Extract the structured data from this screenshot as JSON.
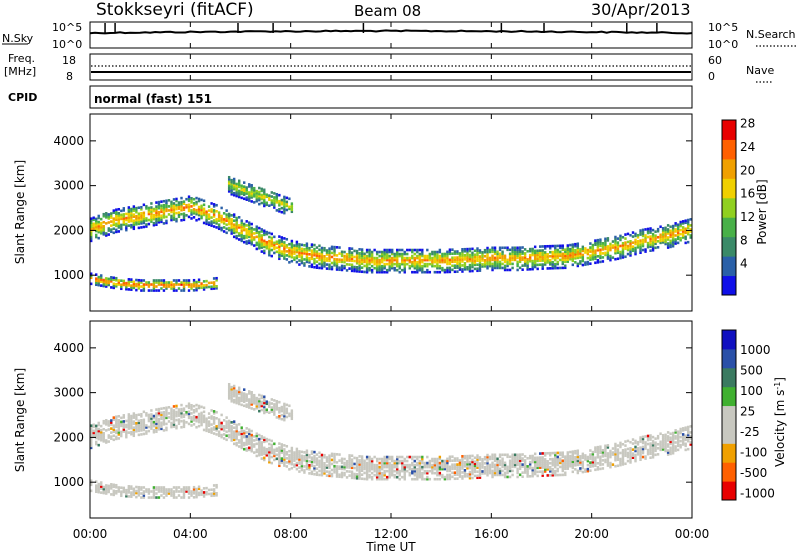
{
  "header": {
    "station": "Stokkseyri (fitACF)",
    "beam": "Beam 08",
    "date": "30/Apr/2013"
  },
  "scan_labels": {
    "nsky": "N.Sky",
    "nsearch": "N.Search",
    "freq_line1": "Freq.",
    "freq_line2": "[MHz]",
    "nave": "Nave",
    "cpid": "CPID",
    "cpid_value": "normal (fast) 151",
    "noise_top_left": "10^5",
    "noise_bottom_left": "10^0",
    "noise_top_right": "10^5",
    "noise_bottom_right": "10^0",
    "freq_top": "18",
    "freq_bottom": "8",
    "nave_top": "60",
    "nave_bottom": "0"
  },
  "colors": {
    "power_scale": [
      "#1010e8",
      "#2a60a8",
      "#3a8a68",
      "#48b048",
      "#90d020",
      "#f0d000",
      "#f0a000",
      "#ff6000",
      "#e80000"
    ],
    "velocity_scale": [
      "#1010c0",
      "#2a50a8",
      "#3a7a60",
      "#40b030",
      "#c8c8c0",
      "#c8c8c0",
      "#f0a000",
      "#ff6000",
      "#e80000"
    ]
  },
  "chart_data": [
    {
      "type": "heatmap",
      "name": "power",
      "xlabel": "",
      "ylabel": "Slant Range [km]",
      "xlim": [
        "00:00",
        "24:00"
      ],
      "ylim": [
        200,
        4600
      ],
      "yticks": [
        1000,
        2000,
        3000,
        4000
      ],
      "xticks": [
        "00:00",
        "04:00",
        "08:00",
        "12:00",
        "16:00",
        "20:00",
        "00:00"
      ],
      "colorbar": {
        "label": "Power [dB]",
        "ticks": [
          "4",
          "8",
          "12",
          "16",
          "20",
          "24",
          "28"
        ],
        "range": [
          0,
          30
        ]
      },
      "bands": [
        {
          "desc": "main echo band",
          "x_hours": [
            0,
            1,
            2,
            3,
            4,
            5,
            6,
            7,
            8,
            9,
            10,
            11,
            12,
            13,
            14,
            15,
            16,
            17,
            18,
            19,
            20,
            21,
            22,
            23,
            24
          ],
          "range_km": [
            2000,
            2200,
            2300,
            2400,
            2500,
            2300,
            2000,
            1700,
            1500,
            1400,
            1350,
            1300,
            1300,
            1300,
            1300,
            1320,
            1350,
            1350,
            1380,
            1400,
            1500,
            1600,
            1750,
            1850,
            2000
          ],
          "peak_db": 24
        },
        {
          "desc": "near range band",
          "x_hours": [
            0,
            1,
            2,
            3,
            4,
            5
          ],
          "range_km": [
            900,
            800,
            750,
            750,
            750,
            800
          ],
          "peak_db": 28
        },
        {
          "desc": "far range band",
          "x_hours": [
            5.5,
            6,
            7,
            8
          ],
          "range_km": [
            3000,
            2900,
            2700,
            2500
          ],
          "peak_db": 18
        }
      ]
    },
    {
      "type": "heatmap",
      "name": "velocity",
      "xlabel": "Time UT",
      "ylabel": "Slant Range [km]",
      "xlim": [
        "00:00",
        "24:00"
      ],
      "ylim": [
        200,
        4600
      ],
      "yticks": [
        1000,
        2000,
        3000,
        4000
      ],
      "xticks": [
        "00:00",
        "04:00",
        "08:00",
        "12:00",
        "16:00",
        "20:00",
        "00:00"
      ],
      "colorbar": {
        "label": "Velocity [m s^-1]",
        "ticks": [
          "1000",
          "500",
          "100",
          "25",
          "-25",
          "-100",
          "-500",
          "-1000"
        ]
      }
    }
  ]
}
